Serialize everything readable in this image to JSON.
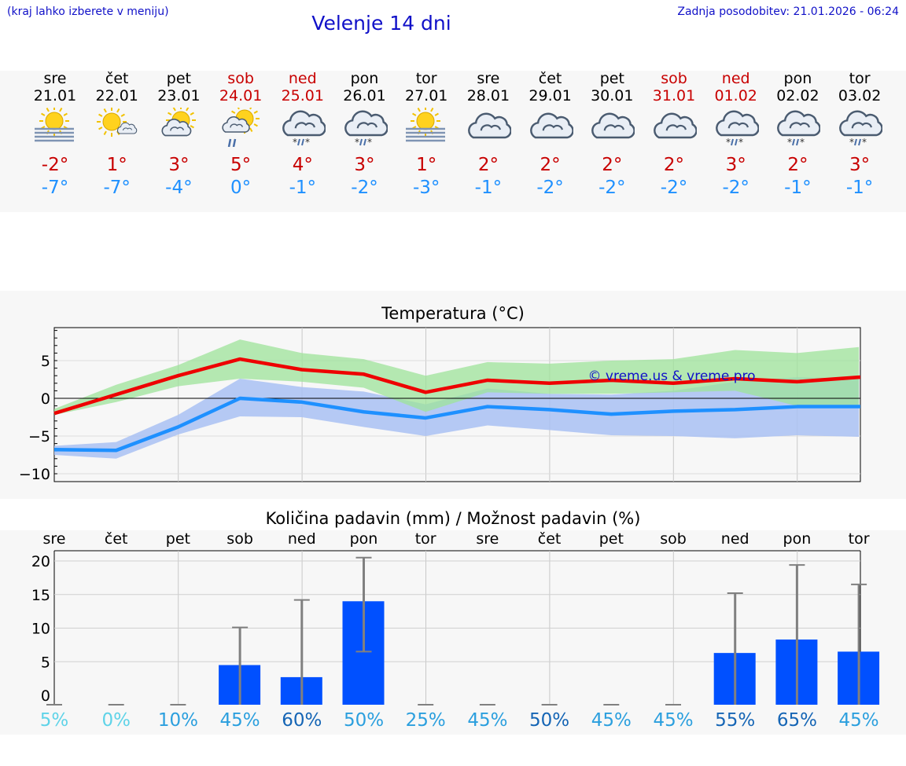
{
  "header": {
    "hint": "(kraj lahko izberete v meniju)",
    "title": "Velenje 14 dni",
    "updated": "Zadnja posodobitev: 21.01.2026 - 06:24"
  },
  "days": [
    {
      "dow": "sre",
      "date": "21.01",
      "weekend": false,
      "icon": "fog-sun",
      "max": "-2°",
      "min": "-7°"
    },
    {
      "dow": "čet",
      "date": "22.01",
      "weekend": false,
      "icon": "sun-small-cloud",
      "max": "1°",
      "min": "-7°"
    },
    {
      "dow": "pet",
      "date": "23.01",
      "weekend": false,
      "icon": "sun-cloud",
      "max": "3°",
      "min": "-4°"
    },
    {
      "dow": "sob",
      "date": "24.01",
      "weekend": true,
      "icon": "sun-cloud-rain",
      "max": "5°",
      "min": "0°"
    },
    {
      "dow": "ned",
      "date": "25.01",
      "weekend": true,
      "icon": "cloud-snow-rain",
      "max": "4°",
      "min": "-1°"
    },
    {
      "dow": "pon",
      "date": "26.01",
      "weekend": false,
      "icon": "cloud-snow-rain",
      "max": "3°",
      "min": "-2°"
    },
    {
      "dow": "tor",
      "date": "27.01",
      "weekend": false,
      "icon": "fog-sun",
      "max": "1°",
      "min": "-3°"
    },
    {
      "dow": "sre",
      "date": "28.01",
      "weekend": false,
      "icon": "cloud",
      "max": "2°",
      "min": "-1°"
    },
    {
      "dow": "čet",
      "date": "29.01",
      "weekend": false,
      "icon": "cloud",
      "max": "2°",
      "min": "-2°"
    },
    {
      "dow": "pet",
      "date": "30.01",
      "weekend": false,
      "icon": "cloud",
      "max": "2°",
      "min": "-2°"
    },
    {
      "dow": "sob",
      "date": "31.01",
      "weekend": true,
      "icon": "cloud",
      "max": "2°",
      "min": "-2°"
    },
    {
      "dow": "ned",
      "date": "01.02",
      "weekend": true,
      "icon": "cloud-snow-rain",
      "max": "3°",
      "min": "-2°"
    },
    {
      "dow": "pon",
      "date": "02.02",
      "weekend": false,
      "icon": "cloud-snow-rain",
      "max": "2°",
      "min": "-1°"
    },
    {
      "dow": "tor",
      "date": "03.02",
      "weekend": false,
      "icon": "cloud-snow-rain",
      "max": "3°",
      "min": "-1°"
    }
  ],
  "colors": {
    "accent": "#1010c8",
    "weekend": "#c80000",
    "max_line": "#ee0000",
    "min_line": "#1e90ff",
    "max_band": "#9ee39a",
    "min_band": "#a9c1f3",
    "bar": "#0050ff",
    "error": "#808080"
  },
  "chart_data": [
    {
      "type": "line",
      "title": "Temperatura (°C)",
      "x": [
        0,
        1,
        2,
        3,
        4,
        5,
        6,
        7,
        8,
        9,
        10,
        11,
        12,
        13
      ],
      "ylim": [
        -11,
        9
      ],
      "yticks": [
        5,
        0,
        -5,
        -10
      ],
      "ytick_labels": [
        "5",
        "0",
        "−5",
        "−10"
      ],
      "watermark": "© vreme.us & vreme.pro",
      "series": [
        {
          "name": "max",
          "values": [
            -2,
            0.5,
            3,
            5.2,
            3.8,
            3.2,
            0.8,
            2.4,
            2.0,
            2.4,
            2.0,
            2.6,
            2.2,
            2.8
          ],
          "band_low": [
            -2.2,
            -0.5,
            1.6,
            2.6,
            2.2,
            1.4,
            -1.8,
            0.8,
            0.6,
            0.6,
            0.8,
            1.0,
            -1.0,
            -1.2
          ],
          "band_high": [
            -1.4,
            1.8,
            4.4,
            7.8,
            6.0,
            5.2,
            3.0,
            4.8,
            4.6,
            5.0,
            5.2,
            6.4,
            6.0,
            6.8
          ]
        },
        {
          "name": "min",
          "values": [
            -6.8,
            -6.9,
            -3.8,
            0.0,
            -0.5,
            -1.8,
            -2.6,
            -1.1,
            -1.5,
            -2.1,
            -1.7,
            -1.5,
            -1.1,
            -1.1
          ],
          "band_low": [
            -7.5,
            -8.0,
            -4.8,
            -2.4,
            -2.5,
            -3.8,
            -5.0,
            -3.6,
            -4.2,
            -4.9,
            -5.0,
            -5.3,
            -4.9,
            -5.1
          ],
          "band_high": [
            -6.3,
            -5.8,
            -2.2,
            2.6,
            1.5,
            0.9,
            -0.8,
            1.3,
            0.6,
            0.5,
            1.0,
            2.2,
            2.8,
            2.6
          ]
        }
      ]
    },
    {
      "type": "bar",
      "title": "Količina padavin (mm) / Možnost padavin (%)",
      "categories": [
        "sre",
        "čet",
        "pet",
        "sob",
        "ned",
        "pon",
        "tor",
        "sre",
        "čet",
        "pet",
        "sob",
        "ned",
        "pon",
        "tor"
      ],
      "values": [
        0,
        0,
        0,
        4.5,
        2.7,
        14.0,
        0,
        0,
        0,
        0,
        0,
        6.3,
        8.3,
        6.5
      ],
      "err_low": [
        0,
        0,
        0,
        0,
        0,
        6.5,
        0,
        0,
        0,
        0,
        0,
        0,
        0,
        0
      ],
      "err_high": [
        0,
        0,
        0,
        10.1,
        14.2,
        20.5,
        0,
        0,
        0,
        0,
        0,
        15.2,
        19.4,
        16.5
      ],
      "ylim": [
        -1,
        22
      ],
      "yticks": [
        20,
        15,
        10,
        5,
        0
      ],
      "probability": [
        "5%",
        "0%",
        "10%",
        "45%",
        "60%",
        "50%",
        "25%",
        "45%",
        "50%",
        "45%",
        "45%",
        "55%",
        "65%",
        "45%"
      ],
      "probability_colors": [
        "#5fd3e8",
        "#5fd3e8",
        "#2b9fde",
        "#2b9fde",
        "#1565b5",
        "#2b9fde",
        "#2b9fde",
        "#2b9fde",
        "#1565b5",
        "#2b9fde",
        "#2b9fde",
        "#1565b5",
        "#1565b5",
        "#2b9fde"
      ]
    }
  ]
}
